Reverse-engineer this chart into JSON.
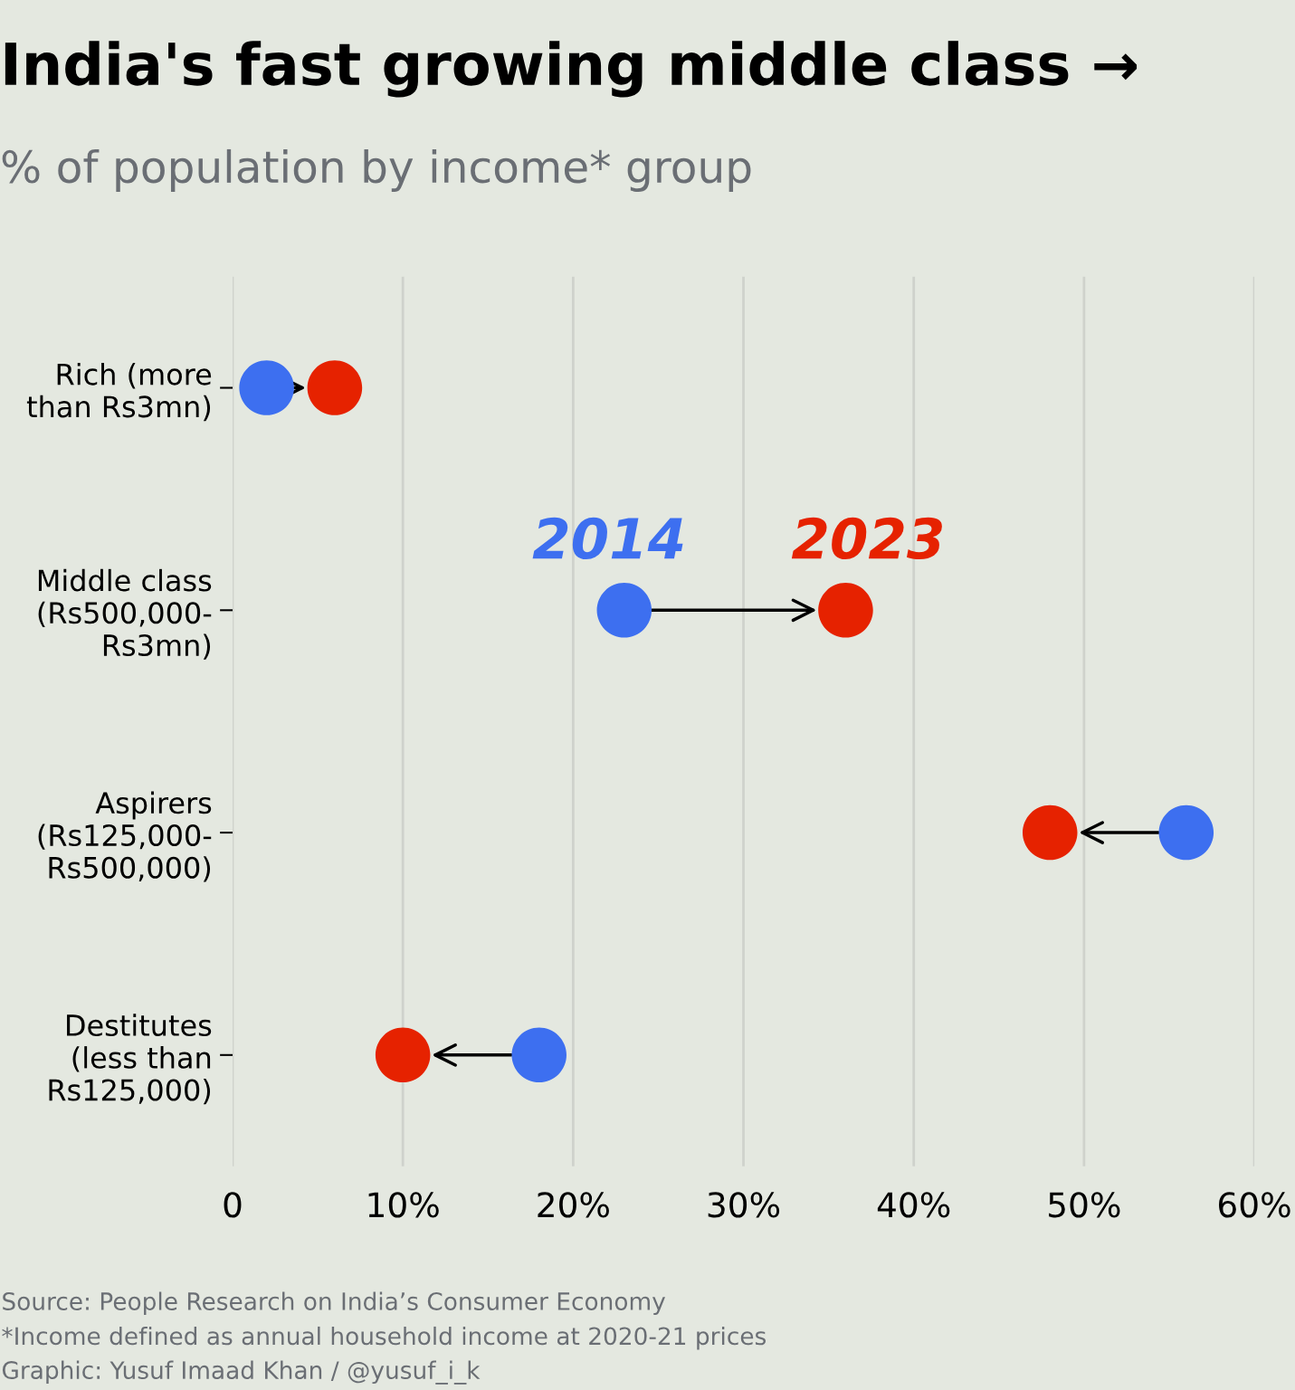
{
  "chart_data": {
    "type": "scatter",
    "orientation": "horizontal",
    "title": "India's fast growing middle class →",
    "subtitle": "% of population by income* group",
    "categories": [
      "Rich (more\nthan Rs3mn)",
      "Middle class\n(Rs500,000-\nRs3mn)",
      "Aspirers\n(Rs125,000-\nRs500,000)",
      "Destitutes\n(less than\nRs125,000)"
    ],
    "series": [
      {
        "name": "2014",
        "color": "#3d6ff0",
        "values": [
          2,
          23,
          56,
          18
        ]
      },
      {
        "name": "2023",
        "color": "#e62200",
        "values": [
          6,
          36,
          48,
          10
        ]
      }
    ],
    "xlim": [
      0,
      60
    ],
    "xticks": [
      0,
      {
        "value": 10,
        "label": "10%"
      },
      {
        "value": 20,
        "label": "20%"
      },
      {
        "value": 30,
        "label": "30%"
      },
      {
        "value": 40,
        "label": "40%"
      },
      {
        "value": 50,
        "label": "50%"
      },
      {
        "value": 60,
        "label": "60%"
      }
    ],
    "grid": "x",
    "marker": "circle",
    "annotations": [
      "Source: People Research on India’s Consumer Economy",
      "*Income defined as annual household income at 2020-21 prices",
      "Graphic: Yusuf Imaad Khan / @yusuf_i_k"
    ]
  }
}
